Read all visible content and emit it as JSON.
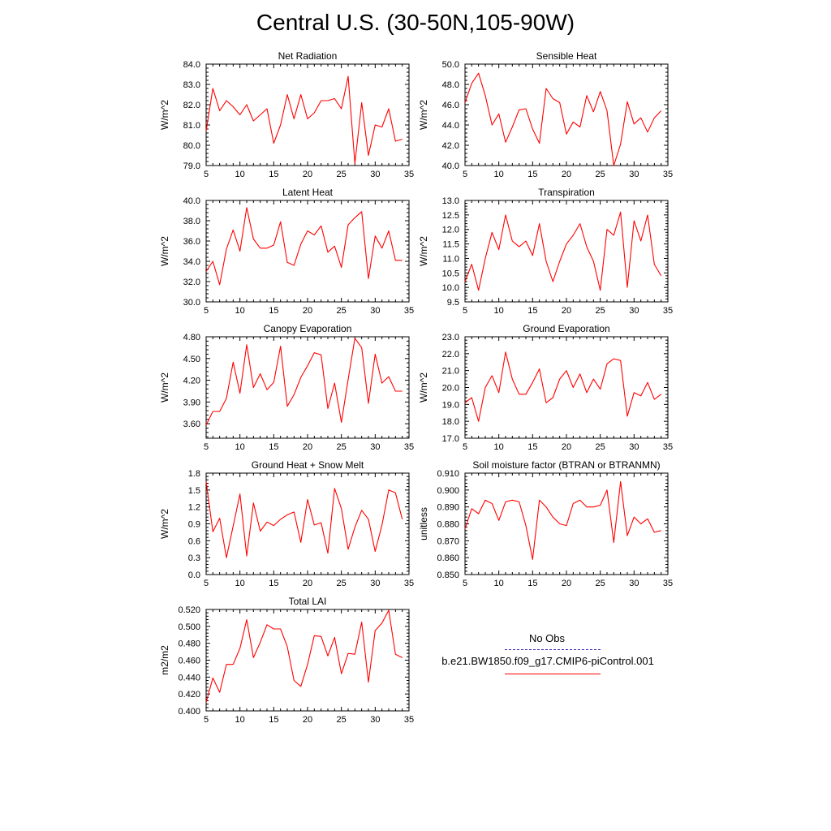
{
  "title": "Central U.S. (30-50N,105-90W)",
  "legend": {
    "obs_label": "No Obs",
    "run_label": "b.e21.BW1850.f09_g17.CMIP6-piControl.001",
    "obs_color": "#3a2db0",
    "run_color": "#ff0000",
    "obs_style": "dashed",
    "run_style": "solid"
  },
  "chart_data": [
    {
      "type": "line",
      "title": "Net Radiation",
      "ylabel": "W/m^2",
      "ylim": [
        79.0,
        84.0
      ],
      "yticks": [
        "79.0",
        "80.0",
        "81.0",
        "82.0",
        "83.0",
        "84.0"
      ],
      "xlim": [
        5,
        35
      ],
      "xticks": [
        "5",
        "10",
        "15",
        "20",
        "25",
        "30",
        "35"
      ],
      "series": [
        {
          "color": "#ff0000",
          "x": [
            5,
            6,
            7,
            8,
            9,
            10,
            11,
            12,
            13,
            14,
            15,
            16,
            17,
            18,
            19,
            20,
            21,
            22,
            23,
            24,
            25,
            26,
            27,
            28,
            29,
            30,
            31,
            32,
            33,
            34
          ],
          "values": [
            80.7,
            82.8,
            81.7,
            82.2,
            81.9,
            81.5,
            82.0,
            81.2,
            81.5,
            81.8,
            80.1,
            81.0,
            82.5,
            81.3,
            82.5,
            81.3,
            81.6,
            82.2,
            82.2,
            82.3,
            81.8,
            83.4,
            79.1,
            82.1,
            79.5,
            81.0,
            80.9,
            81.8,
            80.2,
            80.3
          ]
        }
      ]
    },
    {
      "type": "line",
      "title": "Sensible Heat",
      "ylabel": "W/m^2",
      "ylim": [
        40.0,
        50.0
      ],
      "yticks": [
        "40.0",
        "42.0",
        "44.0",
        "46.0",
        "48.0",
        "50.0"
      ],
      "xlim": [
        5,
        35
      ],
      "xticks": [
        "5",
        "10",
        "15",
        "20",
        "25",
        "30",
        "35"
      ],
      "series": [
        {
          "color": "#ff0000",
          "x": [
            5,
            6,
            7,
            8,
            9,
            10,
            11,
            12,
            13,
            14,
            15,
            16,
            17,
            18,
            19,
            20,
            21,
            22,
            23,
            24,
            25,
            26,
            27,
            28,
            29,
            30,
            31,
            32,
            33,
            34
          ],
          "values": [
            46.2,
            48.1,
            49.1,
            46.9,
            44.0,
            45.1,
            42.3,
            43.8,
            45.5,
            45.6,
            43.6,
            42.2,
            47.6,
            46.6,
            46.2,
            43.1,
            44.3,
            43.8,
            46.9,
            45.3,
            47.3,
            45.4,
            40.0,
            42.1,
            46.3,
            44.1,
            44.7,
            43.3,
            44.7,
            45.4
          ]
        }
      ]
    },
    {
      "type": "line",
      "title": "Latent Heat",
      "ylabel": "W/m^2",
      "ylim": [
        30.0,
        40.0
      ],
      "yticks": [
        "30.0",
        "32.0",
        "34.0",
        "36.0",
        "38.0",
        "40.0"
      ],
      "xlim": [
        5,
        35
      ],
      "xticks": [
        "5",
        "10",
        "15",
        "20",
        "25",
        "30",
        "35"
      ],
      "series": [
        {
          "color": "#ff0000",
          "x": [
            5,
            6,
            7,
            8,
            9,
            10,
            11,
            12,
            13,
            14,
            15,
            16,
            17,
            18,
            19,
            20,
            21,
            22,
            23,
            24,
            25,
            26,
            27,
            28,
            29,
            30,
            31,
            32,
            33,
            34
          ],
          "values": [
            33.0,
            34.0,
            31.7,
            35.2,
            37.1,
            35.0,
            39.3,
            36.2,
            35.3,
            35.3,
            35.6,
            37.9,
            33.9,
            33.6,
            35.7,
            37.0,
            36.6,
            37.5,
            34.9,
            35.5,
            33.4,
            37.6,
            38.3,
            38.9,
            32.3,
            36.5,
            35.3,
            37.0,
            34.1,
            34.1
          ]
        }
      ]
    },
    {
      "type": "line",
      "title": "Transpiration",
      "ylabel": "W/m^2",
      "ylim": [
        9.5,
        13.0
      ],
      "yticks": [
        "9.5",
        "10.0",
        "10.5",
        "11.0",
        "11.5",
        "12.0",
        "12.5",
        "13.0"
      ],
      "xlim": [
        5,
        35
      ],
      "xticks": [
        "5",
        "10",
        "15",
        "20",
        "25",
        "30",
        "35"
      ],
      "series": [
        {
          "color": "#ff0000",
          "x": [
            5,
            6,
            7,
            8,
            9,
            10,
            11,
            12,
            13,
            14,
            15,
            16,
            17,
            18,
            19,
            20,
            21,
            22,
            23,
            24,
            25,
            26,
            27,
            28,
            29,
            30,
            31,
            32,
            33,
            34
          ],
          "values": [
            10.2,
            10.8,
            9.9,
            11.0,
            11.9,
            11.3,
            12.5,
            11.6,
            11.4,
            11.6,
            11.1,
            12.2,
            10.9,
            10.2,
            10.9,
            11.5,
            11.8,
            12.2,
            11.4,
            10.9,
            9.9,
            12.0,
            11.8,
            12.6,
            10.0,
            12.3,
            11.6,
            12.5,
            10.8,
            10.4
          ]
        }
      ]
    },
    {
      "type": "line",
      "title": "Canopy Evaporation",
      "ylabel": "W/m^2",
      "ylim": [
        3.4,
        4.8
      ],
      "yticks": [
        "3.60",
        "3.90",
        "4.20",
        "4.50",
        "4.80"
      ],
      "xlim": [
        5,
        35
      ],
      "xticks": [
        "5",
        "10",
        "15",
        "20",
        "25",
        "30",
        "35"
      ],
      "series": [
        {
          "color": "#ff0000",
          "x": [
            5,
            6,
            7,
            8,
            9,
            10,
            11,
            12,
            13,
            14,
            15,
            16,
            17,
            18,
            19,
            20,
            21,
            22,
            23,
            24,
            25,
            26,
            27,
            28,
            29,
            30,
            31,
            32,
            33,
            34
          ],
          "values": [
            3.58,
            3.77,
            3.77,
            3.95,
            4.45,
            4.02,
            4.69,
            4.1,
            4.29,
            4.07,
            4.17,
            4.67,
            3.84,
            4.0,
            4.24,
            4.4,
            4.58,
            4.55,
            3.81,
            4.16,
            3.62,
            4.21,
            4.78,
            4.65,
            3.88,
            4.56,
            4.16,
            4.25,
            4.05,
            4.05
          ]
        }
      ]
    },
    {
      "type": "line",
      "title": "Ground Evaporation",
      "ylabel": "W/m^2",
      "ylim": [
        17.0,
        23.0
      ],
      "yticks": [
        "17.0",
        "18.0",
        "19.0",
        "20.0",
        "21.0",
        "22.0",
        "23.0"
      ],
      "xlim": [
        5,
        35
      ],
      "xticks": [
        "5",
        "10",
        "15",
        "20",
        "25",
        "30",
        "35"
      ],
      "series": [
        {
          "color": "#ff0000",
          "x": [
            5,
            6,
            7,
            8,
            9,
            10,
            11,
            12,
            13,
            14,
            15,
            16,
            17,
            18,
            19,
            20,
            21,
            22,
            23,
            24,
            25,
            26,
            27,
            28,
            29,
            30,
            31,
            32,
            33,
            34
          ],
          "values": [
            19.1,
            19.4,
            18.0,
            20.0,
            20.7,
            19.7,
            22.1,
            20.5,
            19.6,
            19.6,
            20.3,
            21.1,
            19.1,
            19.4,
            20.5,
            21.0,
            20.0,
            20.8,
            19.7,
            20.5,
            19.9,
            21.4,
            21.7,
            21.6,
            18.3,
            19.7,
            19.5,
            20.3,
            19.3,
            19.6
          ]
        }
      ]
    },
    {
      "type": "line",
      "title": "Ground Heat + Snow Melt",
      "ylabel": "W/m^2",
      "ylim": [
        0.0,
        1.8
      ],
      "yticks": [
        "0.0",
        "0.3",
        "0.6",
        "0.9",
        "1.2",
        "1.5",
        "1.8"
      ],
      "xlim": [
        5,
        35
      ],
      "xticks": [
        "5",
        "10",
        "15",
        "20",
        "25",
        "30",
        "35"
      ],
      "series": [
        {
          "color": "#ff0000",
          "x": [
            5,
            6,
            7,
            8,
            9,
            10,
            11,
            12,
            13,
            14,
            15,
            16,
            17,
            18,
            19,
            20,
            21,
            22,
            23,
            24,
            25,
            26,
            27,
            28,
            29,
            30,
            31,
            32,
            33,
            34
          ],
          "values": [
            1.65,
            0.76,
            1.0,
            0.3,
            0.86,
            1.43,
            0.33,
            1.27,
            0.77,
            0.93,
            0.87,
            0.98,
            1.06,
            1.11,
            0.57,
            1.33,
            0.88,
            0.92,
            0.38,
            1.53,
            1.17,
            0.45,
            0.84,
            1.14,
            0.98,
            0.41,
            0.88,
            1.5,
            1.45,
            0.98
          ]
        }
      ]
    },
    {
      "type": "line",
      "title": "Soil moisture factor (BTRAN or BTRANMN)",
      "ylabel": "unitless",
      "ylim": [
        0.85,
        0.91
      ],
      "yticks": [
        "0.850",
        "0.860",
        "0.870",
        "0.880",
        "0.890",
        "0.900",
        "0.910"
      ],
      "xlim": [
        5,
        35
      ],
      "xticks": [
        "5",
        "10",
        "15",
        "20",
        "25",
        "30",
        "35"
      ],
      "series": [
        {
          "color": "#ff0000",
          "x": [
            5,
            6,
            7,
            8,
            9,
            10,
            11,
            12,
            13,
            14,
            15,
            16,
            17,
            18,
            19,
            20,
            21,
            22,
            23,
            24,
            25,
            26,
            27,
            28,
            29,
            30,
            31,
            32,
            33,
            34
          ],
          "values": [
            0.877,
            0.889,
            0.886,
            0.894,
            0.892,
            0.882,
            0.893,
            0.894,
            0.893,
            0.879,
            0.859,
            0.894,
            0.89,
            0.884,
            0.88,
            0.879,
            0.892,
            0.894,
            0.89,
            0.89,
            0.891,
            0.9,
            0.869,
            0.905,
            0.873,
            0.884,
            0.88,
            0.883,
            0.875,
            0.876
          ]
        }
      ]
    },
    {
      "type": "line",
      "title": "Total LAI",
      "ylabel": "m2/m2",
      "ylim": [
        0.4,
        0.52
      ],
      "yticks": [
        "0.400",
        "0.420",
        "0.440",
        "0.460",
        "0.480",
        "0.500",
        "0.520"
      ],
      "xlim": [
        5,
        35
      ],
      "xticks": [
        "5",
        "10",
        "15",
        "20",
        "25",
        "30",
        "35"
      ],
      "series": [
        {
          "color": "#ff0000",
          "x": [
            5,
            6,
            7,
            8,
            9,
            10,
            11,
            12,
            13,
            14,
            15,
            16,
            17,
            18,
            19,
            20,
            21,
            22,
            23,
            24,
            25,
            26,
            27,
            28,
            29,
            30,
            31,
            32,
            33,
            34
          ],
          "values": [
            0.41,
            0.439,
            0.422,
            0.455,
            0.455,
            0.474,
            0.508,
            0.463,
            0.481,
            0.502,
            0.497,
            0.497,
            0.476,
            0.436,
            0.429,
            0.455,
            0.489,
            0.488,
            0.465,
            0.487,
            0.444,
            0.468,
            0.467,
            0.505,
            0.434,
            0.495,
            0.504,
            0.519,
            0.467,
            0.463
          ]
        }
      ]
    }
  ]
}
